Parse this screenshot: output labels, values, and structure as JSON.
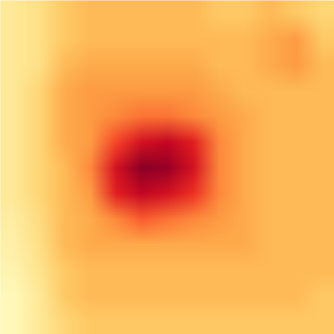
{
  "chart_data": {
    "type": "heatmap",
    "color": "YlOrRd",
    "tick_labels": false,
    "color_range": [
      0,
      1
    ],
    "cells": [
      [
        0.15,
        0.2,
        0.3,
        0.35,
        0.35,
        0.35,
        0.35,
        0.35,
        0.3,
        0.3,
        0.35,
        0.3,
        0.25
      ],
      [
        0.15,
        0.2,
        0.3,
        0.35,
        0.35,
        0.35,
        0.35,
        0.35,
        0.35,
        0.35,
        0.4,
        0.45,
        0.3
      ],
      [
        0.15,
        0.2,
        0.35,
        0.4,
        0.4,
        0.4,
        0.4,
        0.4,
        0.35,
        0.35,
        0.4,
        0.45,
        0.35
      ],
      [
        0.15,
        0.25,
        0.4,
        0.45,
        0.45,
        0.45,
        0.45,
        0.45,
        0.4,
        0.35,
        0.35,
        0.35,
        0.35
      ],
      [
        0.15,
        0.25,
        0.4,
        0.45,
        0.5,
        0.55,
        0.55,
        0.5,
        0.45,
        0.4,
        0.35,
        0.35,
        0.35
      ],
      [
        0.15,
        0.25,
        0.4,
        0.45,
        0.65,
        0.8,
        0.85,
        0.75,
        0.5,
        0.4,
        0.35,
        0.35,
        0.35
      ],
      [
        0.15,
        0.25,
        0.35,
        0.5,
        0.8,
        0.98,
        0.95,
        0.8,
        0.5,
        0.4,
        0.35,
        0.35,
        0.35
      ],
      [
        0.15,
        0.25,
        0.35,
        0.45,
        0.75,
        0.85,
        0.8,
        0.7,
        0.5,
        0.4,
        0.35,
        0.35,
        0.35
      ],
      [
        0.12,
        0.22,
        0.35,
        0.4,
        0.5,
        0.6,
        0.55,
        0.5,
        0.45,
        0.4,
        0.35,
        0.35,
        0.35
      ],
      [
        0.1,
        0.2,
        0.35,
        0.4,
        0.4,
        0.4,
        0.4,
        0.4,
        0.4,
        0.4,
        0.35,
        0.35,
        0.35
      ],
      [
        0.08,
        0.18,
        0.3,
        0.35,
        0.35,
        0.35,
        0.35,
        0.35,
        0.35,
        0.35,
        0.35,
        0.35,
        0.35
      ],
      [
        0.05,
        0.15,
        0.3,
        0.35,
        0.35,
        0.35,
        0.35,
        0.35,
        0.35,
        0.35,
        0.35,
        0.35,
        0.3
      ],
      [
        0.05,
        0.15,
        0.25,
        0.3,
        0.3,
        0.3,
        0.3,
        0.3,
        0.3,
        0.3,
        0.3,
        0.3,
        0.3
      ]
    ]
  }
}
